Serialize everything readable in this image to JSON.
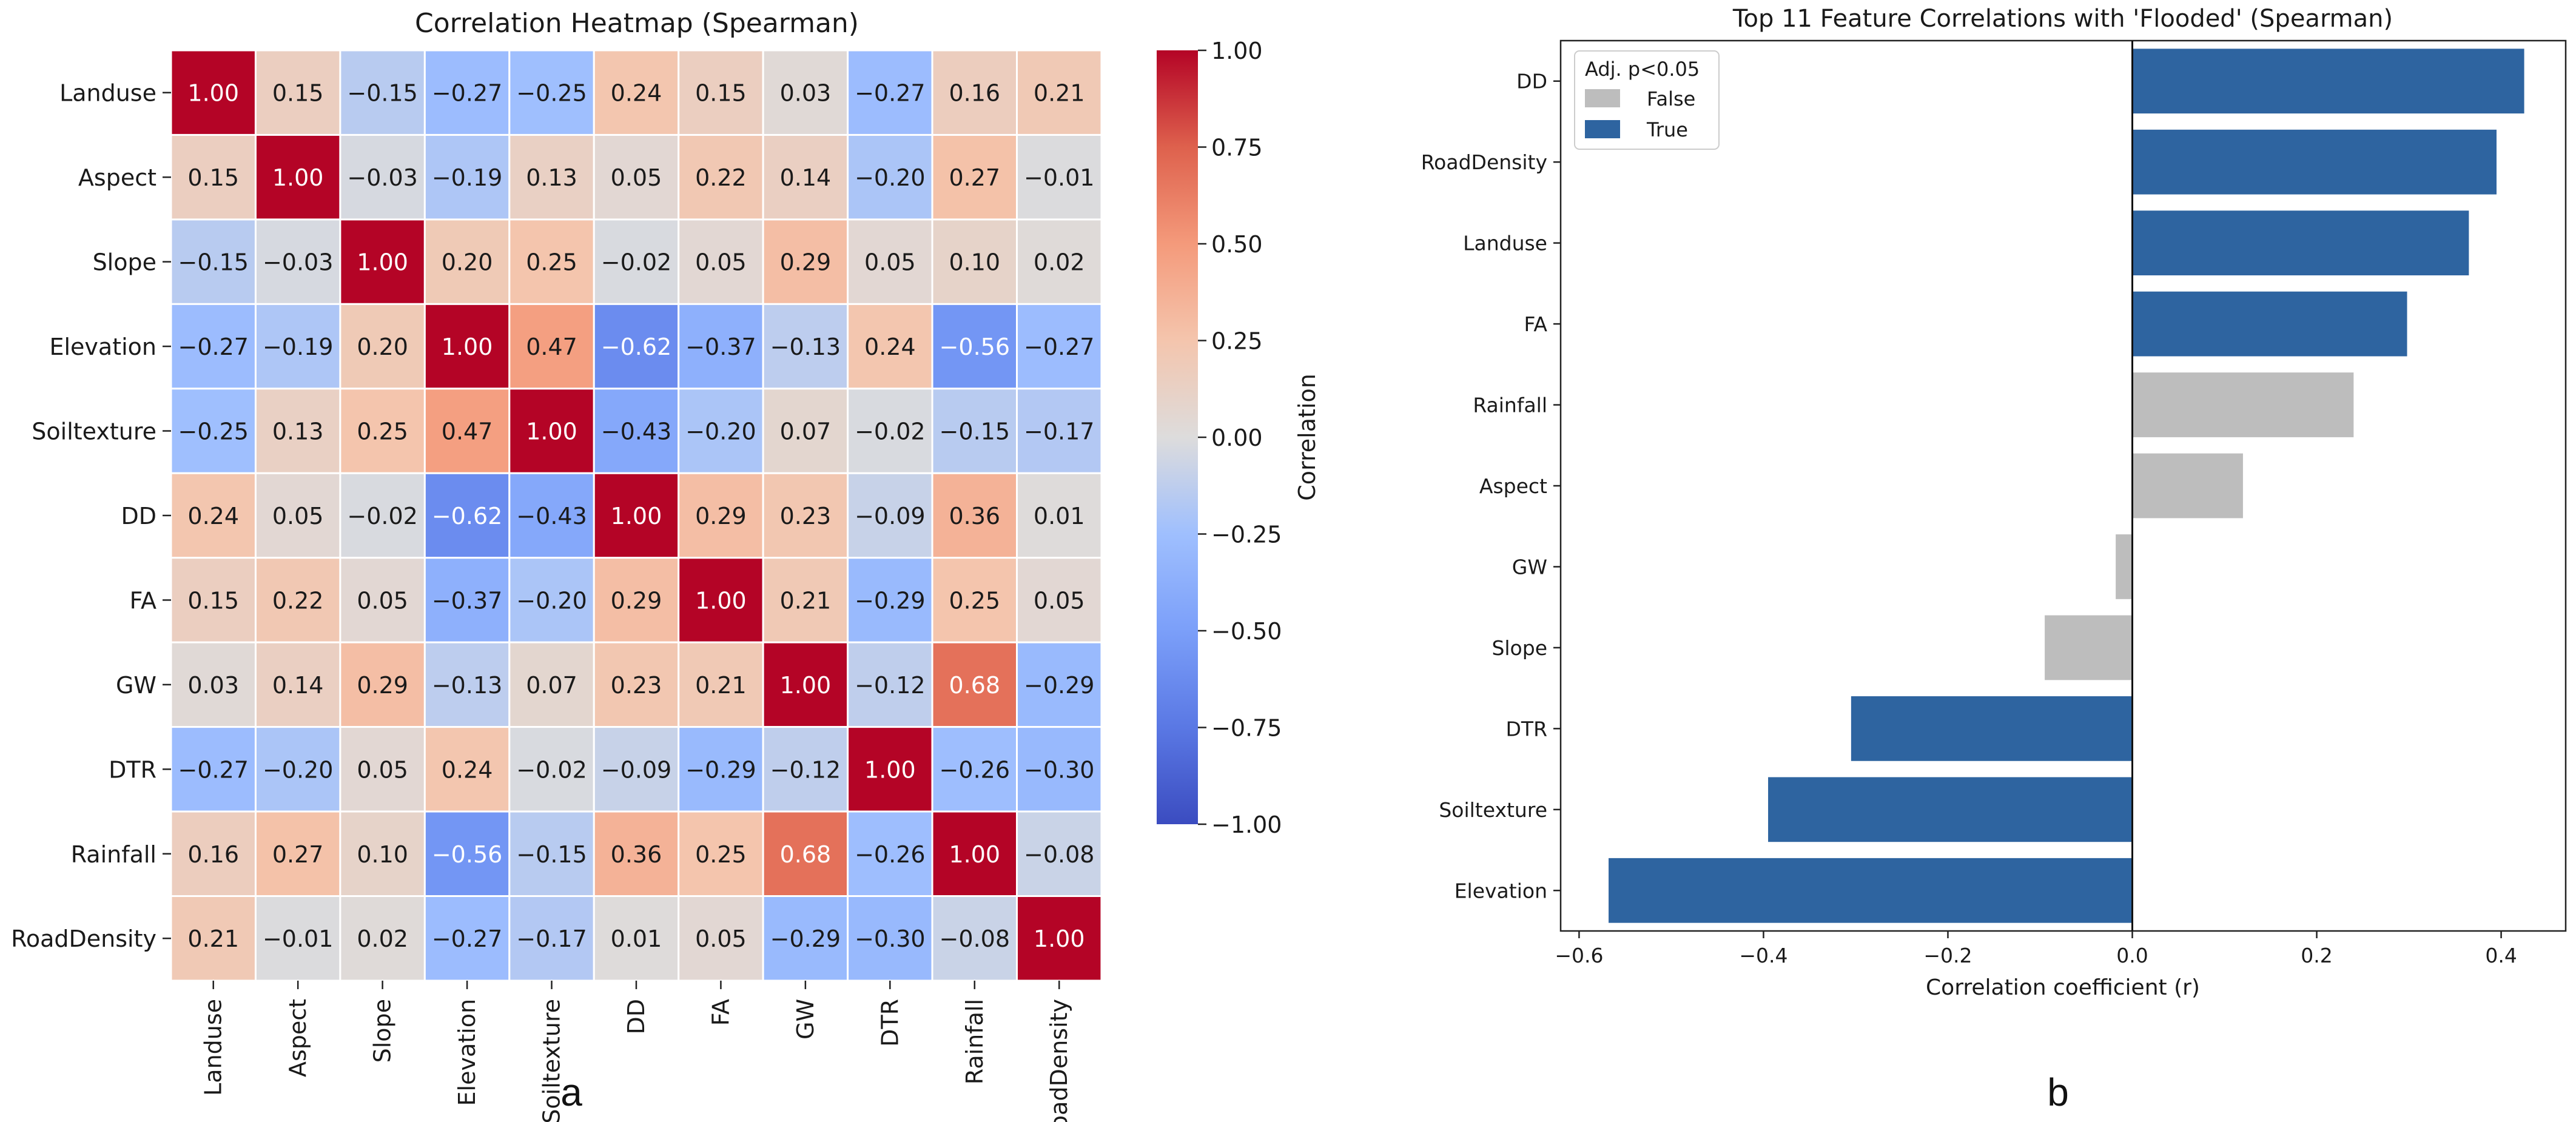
{
  "panel_labels": [
    "a",
    "b"
  ],
  "chart_data": [
    {
      "type": "heatmap",
      "title": "Correlation Heatmap (Spearman)",
      "labels": [
        "Landuse",
        "Aspect",
        "Slope",
        "Elevation",
        "Soiltexture",
        "DD",
        "FA",
        "GW",
        "DTR",
        "Rainfall",
        "RoadDensity"
      ],
      "matrix": [
        [
          1.0,
          0.15,
          -0.15,
          -0.27,
          -0.25,
          0.24,
          0.15,
          0.03,
          -0.27,
          0.16,
          0.21
        ],
        [
          0.15,
          1.0,
          -0.03,
          -0.19,
          0.13,
          0.05,
          0.22,
          0.14,
          -0.2,
          0.27,
          -0.01
        ],
        [
          -0.15,
          -0.03,
          1.0,
          0.2,
          0.25,
          -0.02,
          0.05,
          0.29,
          0.05,
          0.1,
          0.02
        ],
        [
          -0.27,
          -0.19,
          0.2,
          1.0,
          0.47,
          -0.62,
          -0.37,
          -0.13,
          0.24,
          -0.56,
          -0.27
        ],
        [
          -0.25,
          0.13,
          0.25,
          0.47,
          1.0,
          -0.43,
          -0.2,
          0.07,
          -0.02,
          -0.15,
          -0.17
        ],
        [
          0.24,
          0.05,
          -0.02,
          -0.62,
          -0.43,
          1.0,
          0.29,
          0.23,
          -0.09,
          0.36,
          0.01
        ],
        [
          0.15,
          0.22,
          0.05,
          -0.37,
          -0.2,
          0.29,
          1.0,
          0.21,
          -0.29,
          0.25,
          0.05
        ],
        [
          0.03,
          0.14,
          0.29,
          -0.13,
          0.07,
          0.23,
          0.21,
          1.0,
          -0.12,
          0.68,
          -0.29
        ],
        [
          -0.27,
          -0.2,
          0.05,
          0.24,
          -0.02,
          -0.09,
          -0.29,
          -0.12,
          1.0,
          -0.26,
          -0.3
        ],
        [
          0.16,
          0.27,
          0.1,
          -0.56,
          -0.15,
          0.36,
          0.25,
          0.68,
          -0.26,
          1.0,
          -0.08
        ],
        [
          0.21,
          -0.01,
          0.02,
          -0.27,
          -0.17,
          0.01,
          0.05,
          -0.29,
          -0.3,
          -0.08,
          1.0
        ]
      ],
      "colorbar": {
        "label": "Correlation",
        "range": [
          -1.0,
          1.0
        ],
        "ticks": [
          1.0,
          0.75,
          0.5,
          0.25,
          0.0,
          -0.25,
          -0.5,
          -0.75,
          -1.0
        ],
        "tick_labels": [
          "1.00",
          "0.75",
          "0.50",
          "0.25",
          "0.00",
          "−0.25",
          "−0.50",
          "−0.75",
          "−1.00"
        ],
        "colormap": "coolwarm",
        "low_color": "#3b4cc0",
        "mid_color": "#dddcdc",
        "high_color": "#b40426"
      }
    },
    {
      "type": "bar",
      "orientation": "horizontal",
      "title": "Top 11 Feature Correlations with 'Flooded' (Spearman)",
      "xlabel": "Correlation coefficient (r)",
      "ylabel": "",
      "xlim": [
        -0.62,
        0.47
      ],
      "xticks": [
        -0.6,
        -0.4,
        -0.2,
        0.0,
        0.2,
        0.4
      ],
      "xtick_labels": [
        "−0.6",
        "−0.4",
        "−0.2",
        "0.0",
        "0.2",
        "0.4"
      ],
      "categories": [
        "DD",
        "RoadDensity",
        "Landuse",
        "FA",
        "Rainfall",
        "Aspect",
        "GW",
        "Slope",
        "DTR",
        "Soiltexture",
        "Elevation"
      ],
      "values": [
        0.425,
        0.395,
        0.365,
        0.298,
        0.24,
        0.12,
        -0.018,
        -0.095,
        -0.305,
        -0.395,
        -0.568
      ],
      "significant": [
        true,
        true,
        true,
        true,
        false,
        false,
        false,
        false,
        true,
        true,
        true
      ],
      "legend": {
        "title": "Adj. p<0.05",
        "position": "top-left",
        "entries": [
          {
            "label": "False",
            "color": "#bdbdbd"
          },
          {
            "label": "True",
            "color": "#2e64a0"
          }
        ]
      }
    }
  ]
}
